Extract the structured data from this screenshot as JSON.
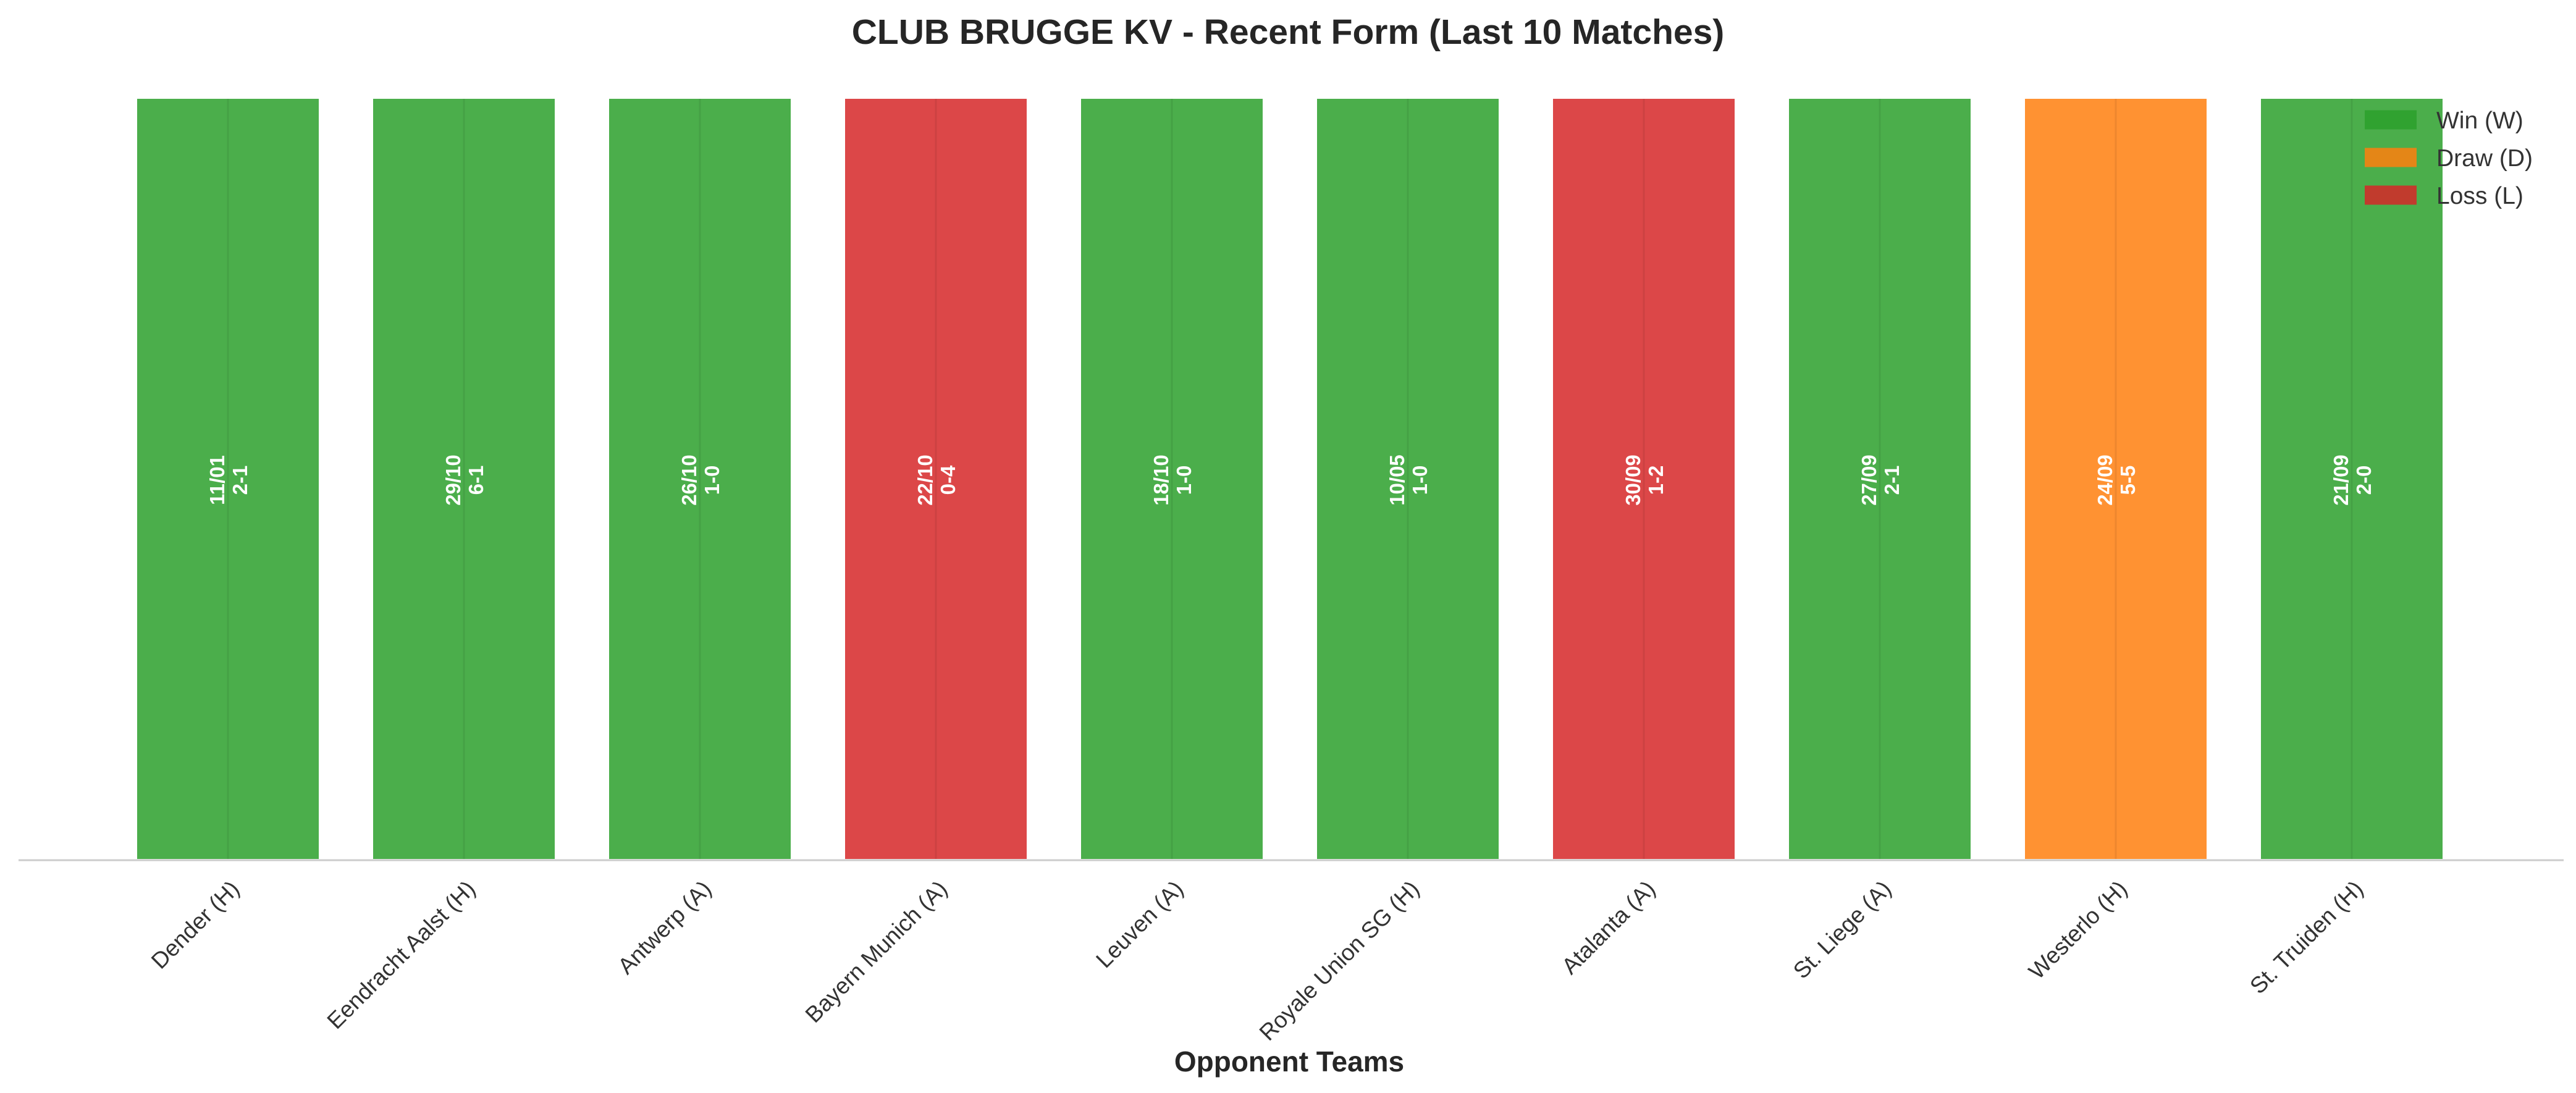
{
  "chart_data": {
    "type": "bar",
    "title": "CLUB BRUGGE KV - Recent Form (Last 10 Matches)",
    "xlabel": "Opponent Teams",
    "ylabel": "",
    "ylim": [
      0,
      1
    ],
    "grid": false,
    "legend_position": "top-right",
    "categories": [
      "Dender (H)",
      "Eendracht Aalst (H)",
      "Antwerp (A)",
      "Bayern Munich (A)",
      "Leuven (A)",
      "Royale Union SG (H)",
      "Atalanta (A)",
      "St. Liege (A)",
      "Westerlo (H)",
      "St. Truiden (H)"
    ],
    "values": [
      1,
      1,
      1,
      1,
      1,
      1,
      1,
      1,
      1,
      1
    ],
    "results": [
      "W",
      "W",
      "W",
      "L",
      "W",
      "W",
      "L",
      "W",
      "D",
      "W"
    ],
    "dates": [
      "11/01",
      "29/10",
      "26/10",
      "22/10",
      "18/10",
      "10/05",
      "30/09",
      "27/09",
      "24/09",
      "21/09"
    ],
    "scores": [
      "2-1",
      "6-1",
      "1-0",
      "0-4",
      "1-0",
      "1-0",
      "1-2",
      "2-1",
      "5-5",
      "2-0"
    ],
    "legend": [
      {
        "key": "W",
        "label": "Win (W)",
        "color": "#2ca02c"
      },
      {
        "key": "D",
        "label": "Draw (D)",
        "color": "#ff7f0e"
      },
      {
        "key": "L",
        "label": "Loss (L)",
        "color": "#d62728"
      }
    ],
    "colors": {
      "W": "#2ca02c",
      "D": "#ff7f0e",
      "L": "#d62728"
    }
  }
}
